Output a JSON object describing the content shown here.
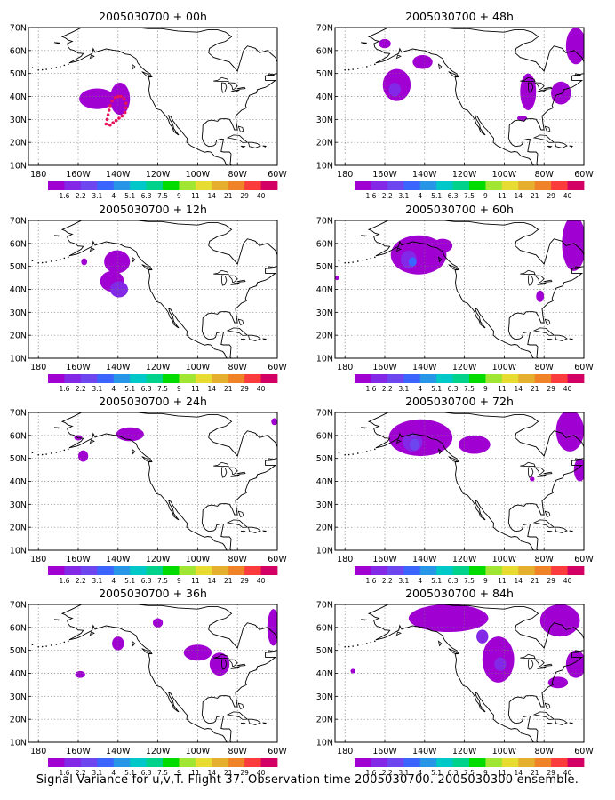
{
  "caption": "Signal Variance for u,v,T. Flight 37. Observation time 2005030700. 2005030300 ensemble.",
  "chart_data": {
    "type": "map-contour",
    "x_tick_labels": [
      "180",
      "160W",
      "140W",
      "120W",
      "100W",
      "80W",
      "60W"
    ],
    "y_tick_labels": [
      "10N",
      "20N",
      "30N",
      "40N",
      "50N",
      "60N",
      "70N"
    ],
    "x_range_deg_east": [
      -185,
      -60
    ],
    "y_range_deg_north": [
      10,
      70
    ],
    "grid": true,
    "colorbar": {
      "levels": [
        "1.6",
        "2.2",
        "3.1",
        "4",
        "5.1",
        "6.3",
        "7.5",
        "9",
        "11",
        "14",
        "21",
        "29",
        "40"
      ],
      "colors": [
        "#a000d2",
        "#8228e6",
        "#6e46f0",
        "#3c64ff",
        "#2896e6",
        "#00c8c8",
        "#00d28c",
        "#00dc00",
        "#a0e632",
        "#e6dc32",
        "#e6af2d",
        "#f08228",
        "#fa3c3c",
        "#d20064"
      ]
    },
    "panels": [
      {
        "title": "2005030700 + 00h",
        "blobs": [
          {
            "lon": -150.5,
            "lat": 39,
            "w": 9,
            "h": 4.5,
            "level": 0
          },
          {
            "lon": -139,
            "lat": 39,
            "w": 5,
            "h": 7,
            "level": 0
          }
        ],
        "flight_track": [
          [
            -146,
            28
          ],
          [
            -145.5,
            30
          ],
          [
            -145,
            32
          ],
          [
            -144.5,
            34
          ],
          [
            -144,
            36
          ],
          [
            -143,
            38
          ],
          [
            -141.5,
            39.5
          ],
          [
            -140,
            40
          ],
          [
            -138.5,
            40
          ],
          [
            -137,
            39
          ],
          [
            -136,
            37
          ],
          [
            -136,
            35
          ],
          [
            -136.5,
            33
          ],
          [
            -138,
            31.5
          ],
          [
            -139.5,
            30.5
          ],
          [
            -141,
            29.5
          ],
          [
            -142.5,
            28.5
          ],
          [
            -144,
            27.5
          ]
        ]
      },
      {
        "title": "2005030700 + 12h",
        "blobs": [
          {
            "lon": -140.5,
            "lat": 52,
            "w": 6.5,
            "h": 5,
            "level": 0
          },
          {
            "lon": -143,
            "lat": 43.5,
            "w": 6,
            "h": 4.5,
            "level": 0
          },
          {
            "lon": -139.5,
            "lat": 40,
            "w": 4.5,
            "h": 3.5,
            "level": 1
          },
          {
            "lon": -157,
            "lat": 52,
            "w": 1.5,
            "h": 1.5,
            "level": 0
          }
        ]
      },
      {
        "title": "2005030700 + 24h",
        "blobs": [
          {
            "lon": -134,
            "lat": 60.5,
            "w": 7,
            "h": 3,
            "level": 0
          },
          {
            "lon": -157.5,
            "lat": 51,
            "w": 2.5,
            "h": 2.5,
            "level": 0
          },
          {
            "lon": -160,
            "lat": 59,
            "w": 2,
            "h": 1.2,
            "level": 0
          },
          {
            "lon": -61.5,
            "lat": 66,
            "w": 1.5,
            "h": 1.5,
            "level": 0
          }
        ]
      },
      {
        "title": "2005030700 + 36h",
        "blobs": [
          {
            "lon": -140,
            "lat": 53,
            "w": 3,
            "h": 3,
            "level": 0
          },
          {
            "lon": -120,
            "lat": 62,
            "w": 2.5,
            "h": 2,
            "level": 0
          },
          {
            "lon": -100,
            "lat": 49,
            "w": 7,
            "h": 3.5,
            "level": 0
          },
          {
            "lon": -89,
            "lat": 44,
            "w": 5,
            "h": 5,
            "level": 0
          },
          {
            "lon": -62,
            "lat": 60,
            "w": 3,
            "h": 8,
            "level": 0
          },
          {
            "lon": -159,
            "lat": 39.5,
            "w": 2.5,
            "h": 1.5,
            "level": 0
          }
        ]
      },
      {
        "title": "2005030700 + 48h",
        "blobs": [
          {
            "lon": -154,
            "lat": 45,
            "w": 7,
            "h": 7,
            "level": 0
          },
          {
            "lon": -155,
            "lat": 43,
            "w": 3,
            "h": 3,
            "level": 1
          },
          {
            "lon": -141,
            "lat": 55,
            "w": 5,
            "h": 3,
            "level": 0
          },
          {
            "lon": -160,
            "lat": 63,
            "w": 3,
            "h": 2,
            "level": 0
          },
          {
            "lon": -88,
            "lat": 42,
            "w": 4,
            "h": 8,
            "level": 0
          },
          {
            "lon": -71.5,
            "lat": 41.5,
            "w": 5,
            "h": 5,
            "level": 0
          },
          {
            "lon": -64,
            "lat": 62,
            "w": 5,
            "h": 8,
            "level": 0
          },
          {
            "lon": -91,
            "lat": 30.5,
            "w": 2.5,
            "h": 1.2,
            "level": 0
          }
        ]
      },
      {
        "title": "2005030700 + 60h",
        "blobs": [
          {
            "lon": -143,
            "lat": 55,
            "w": 14,
            "h": 8.5,
            "level": 0
          },
          {
            "lon": -148,
            "lat": 53,
            "w": 4,
            "h": 4,
            "level": 1
          },
          {
            "lon": -146,
            "lat": 52,
            "w": 2,
            "h": 2,
            "level": 3
          },
          {
            "lon": -131,
            "lat": 59,
            "w": 5,
            "h": 3,
            "level": 0
          },
          {
            "lon": -65,
            "lat": 60,
            "w": 6,
            "h": 12,
            "level": 0
          },
          {
            "lon": -82,
            "lat": 37,
            "w": 2,
            "h": 2.5,
            "level": 0
          },
          {
            "lon": -184,
            "lat": 45,
            "w": 1,
            "h": 1,
            "level": 0
          }
        ]
      },
      {
        "title": "2005030700 + 72h",
        "blobs": [
          {
            "lon": -142,
            "lat": 59,
            "w": 16,
            "h": 8,
            "level": 0
          },
          {
            "lon": -146,
            "lat": 57,
            "w": 5,
            "h": 4,
            "level": 1
          },
          {
            "lon": -145,
            "lat": 56,
            "w": 2.5,
            "h": 2.5,
            "level": 2
          },
          {
            "lon": -115,
            "lat": 56,
            "w": 8,
            "h": 4,
            "level": 0
          },
          {
            "lon": -67,
            "lat": 62,
            "w": 7,
            "h": 9,
            "level": 0
          },
          {
            "lon": -62,
            "lat": 45,
            "w": 3,
            "h": 5,
            "level": 0
          },
          {
            "lon": -86,
            "lat": 41,
            "w": 1.2,
            "h": 1,
            "level": 0
          }
        ]
      },
      {
        "title": "2005030700 + 84h",
        "blobs": [
          {
            "lon": -128,
            "lat": 64,
            "w": 20,
            "h": 6,
            "level": 0
          },
          {
            "lon": -103,
            "lat": 46,
            "w": 8,
            "h": 10,
            "level": 0
          },
          {
            "lon": -102,
            "lat": 44,
            "w": 3,
            "h": 3,
            "level": 1
          },
          {
            "lon": -72,
            "lat": 63,
            "w": 10,
            "h": 7,
            "level": 0
          },
          {
            "lon": -64,
            "lat": 44,
            "w": 5,
            "h": 6,
            "level": 0
          },
          {
            "lon": -73,
            "lat": 36,
            "w": 5,
            "h": 2.5,
            "level": 0
          },
          {
            "lon": -111,
            "lat": 56,
            "w": 3,
            "h": 3,
            "level": 1
          },
          {
            "lon": -176,
            "lat": 41,
            "w": 1.2,
            "h": 1,
            "level": 0
          }
        ]
      }
    ]
  }
}
